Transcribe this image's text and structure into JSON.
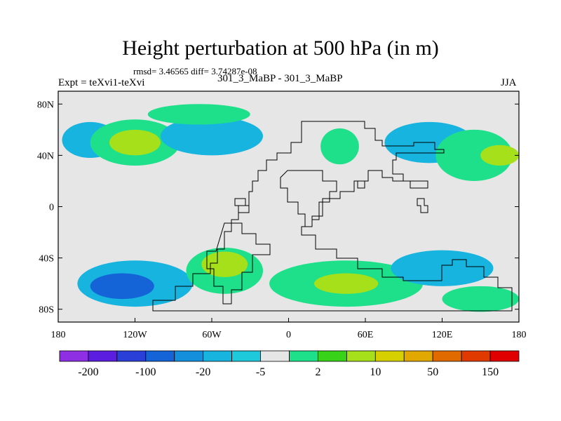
{
  "title": "Height perturbation at 500 hPa (in m)",
  "stats": "rmsd= 3.46565 diff= 3.74287e-08",
  "left_label": "Expt = teXvi1-teXvi",
  "center_label": "301_3_MaBP - 301_3_MaBP",
  "right_label": "JJA",
  "chart_data": {
    "type": "heatmap",
    "title": "Height perturbation at 500 hPa (in m)",
    "xlabel": "",
    "ylabel": "",
    "xlim": [
      -180,
      180
    ],
    "ylim": [
      -90,
      90
    ],
    "x_ticks": [
      {
        "value": -180,
        "label": "180"
      },
      {
        "value": -120,
        "label": "120W"
      },
      {
        "value": -60,
        "label": "60W"
      },
      {
        "value": 0,
        "label": "0"
      },
      {
        "value": 60,
        "label": "60E"
      },
      {
        "value": 120,
        "label": "120E"
      },
      {
        "value": 180,
        "label": "180"
      }
    ],
    "y_ticks": [
      {
        "value": 80,
        "label": "80N"
      },
      {
        "value": 40,
        "label": "40N"
      },
      {
        "value": 0,
        "label": "0"
      },
      {
        "value": -40,
        "label": "40S"
      },
      {
        "value": -80,
        "label": "80S"
      }
    ],
    "colorbar": {
      "colors": [
        "#8f2fe3",
        "#5b1ee0",
        "#2a3fd8",
        "#1464d8",
        "#138fdc",
        "#17b4e0",
        "#1ec9dc",
        "#e6e6e6",
        "#1ee08a",
        "#38d218",
        "#a6e01a",
        "#d7d000",
        "#e0a800",
        "#e06a00",
        "#e03a00",
        "#e00000"
      ],
      "labels": [
        "-200",
        "-100",
        "-20",
        "-5",
        "2",
        "10",
        "50",
        "150"
      ]
    },
    "background_color": "#e6e6e6",
    "anomaly_regions": [
      {
        "lon": -155,
        "lat": 52,
        "lon_radius": 22,
        "lat_radius": 14,
        "level": -5
      },
      {
        "lon": -120,
        "lat": 50,
        "lon_radius": 35,
        "lat_radius": 18,
        "level": 2
      },
      {
        "lon": -120,
        "lat": 50,
        "lon_radius": 20,
        "lat_radius": 10,
        "level": 10
      },
      {
        "lon": -60,
        "lat": 55,
        "lon_radius": 40,
        "lat_radius": 15,
        "level": -5
      },
      {
        "lon": -70,
        "lat": 72,
        "lon_radius": 40,
        "lat_radius": 8,
        "level": 2
      },
      {
        "lon": 40,
        "lat": 47,
        "lon_radius": 15,
        "lat_radius": 14,
        "level": 2
      },
      {
        "lon": 110,
        "lat": 50,
        "lon_radius": 35,
        "lat_radius": 16,
        "level": -5
      },
      {
        "lon": 145,
        "lat": 40,
        "lon_radius": 30,
        "lat_radius": 20,
        "level": 2
      },
      {
        "lon": 165,
        "lat": 40,
        "lon_radius": 15,
        "lat_radius": 8,
        "level": 10
      },
      {
        "lon": -120,
        "lat": -60,
        "lon_radius": 45,
        "lat_radius": 18,
        "level": -5
      },
      {
        "lon": -130,
        "lat": -62,
        "lon_radius": 25,
        "lat_radius": 10,
        "level": -20
      },
      {
        "lon": -50,
        "lat": -50,
        "lon_radius": 30,
        "lat_radius": 18,
        "level": 2
      },
      {
        "lon": -50,
        "lat": -45,
        "lon_radius": 18,
        "lat_radius": 10,
        "level": 10
      },
      {
        "lon": 45,
        "lat": -60,
        "lon_radius": 60,
        "lat_radius": 18,
        "level": 2
      },
      {
        "lon": 45,
        "lat": -60,
        "lon_radius": 25,
        "lat_radius": 8,
        "level": 10
      },
      {
        "lon": 120,
        "lat": -48,
        "lon_radius": 40,
        "lat_radius": 14,
        "level": -5
      },
      {
        "lon": 150,
        "lat": -72,
        "lon_radius": 30,
        "lat_radius": 10,
        "level": 2
      }
    ]
  }
}
